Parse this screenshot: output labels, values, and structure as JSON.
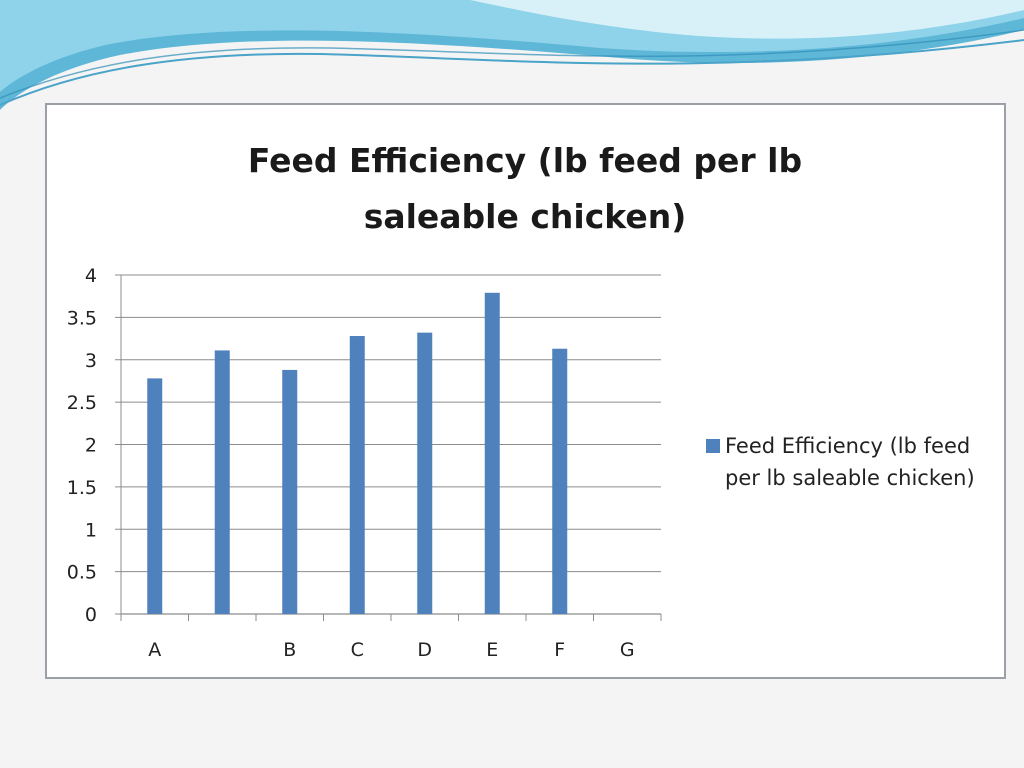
{
  "chart_data": {
    "type": "bar",
    "title": "Feed Efficiency (lb feed per lb\nsaleable chicken)",
    "xlabel": "",
    "ylabel": "",
    "categories": [
      "A",
      "",
      "B",
      "C",
      "D",
      "E",
      "F",
      "G"
    ],
    "series": [
      {
        "name": "Feed Efficiency (lb feed per lb saleable chicken)",
        "values": [
          2.78,
          3.11,
          2.88,
          3.28,
          3.32,
          3.79,
          3.13,
          null
        ],
        "color": "#4f81bd"
      }
    ],
    "ylim": [
      0,
      4
    ],
    "yticks": [
      "0",
      "0.5",
      "1",
      "1.5",
      "2",
      "2.5",
      "3",
      "3.5",
      "4"
    ],
    "grid": true,
    "legend_position": "right"
  },
  "legend": {
    "text": "Feed Efficiency (lb feed per lb saleable chicken)"
  }
}
